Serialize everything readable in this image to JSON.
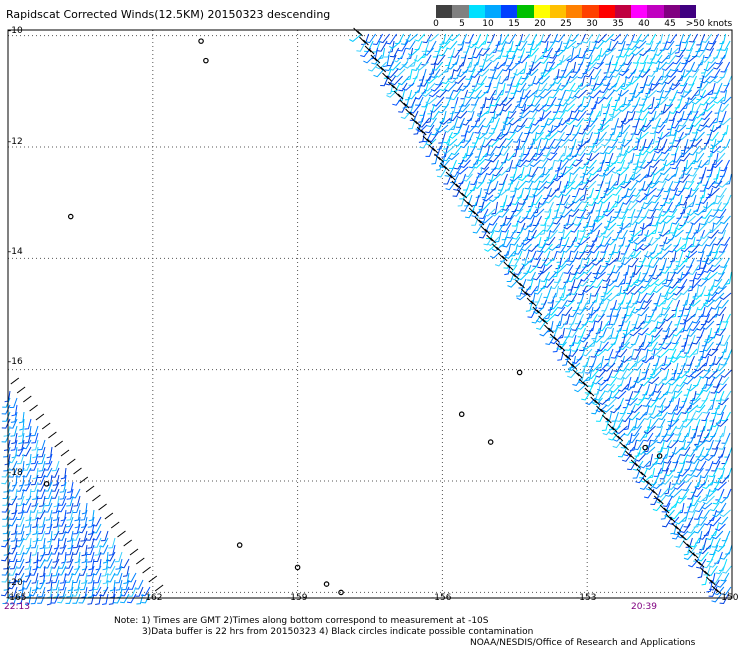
{
  "title": "Rapidscat Corrected Winds(12.5KM) 20150323 descending",
  "legend": {
    "tick_labels": [
      "0",
      "5",
      "10",
      "15",
      "20",
      "25",
      "30",
      "35",
      "40",
      "45",
      ">50 knots"
    ],
    "colors": [
      "#404040",
      "#808080",
      "#00e0ff",
      "#00a8ff",
      "#0040ff",
      "#00c000",
      "#ffff00",
      "#ffc000",
      "#ff8000",
      "#ff4000",
      "#ff0000",
      "#c00040",
      "#ff00ff",
      "#c000c0",
      "#800080",
      "#400080"
    ]
  },
  "map": {
    "lat_labels": [
      "-10",
      "-12",
      "-14",
      "-16",
      "-18",
      "-20"
    ],
    "lon_labels": [
      "-165",
      "-162",
      "-159",
      "-156",
      "-153",
      "-150"
    ],
    "lat_range": [
      -20.1,
      -9.9
    ],
    "lon_range": [
      -165,
      -150
    ],
    "grid": "dotted",
    "time_left": "22:13",
    "time_right": "20:39"
  },
  "notes": {
    "line1": "Note: 1) Times are GMT 2)Times along bottom correspond to measurement at -10S",
    "line2": "3)Data buffer is 22 hrs from 20150323 4) Black circles indicate possible contamination",
    "line3": "NOAA/NESDIS/Office of Research and Applications"
  }
}
